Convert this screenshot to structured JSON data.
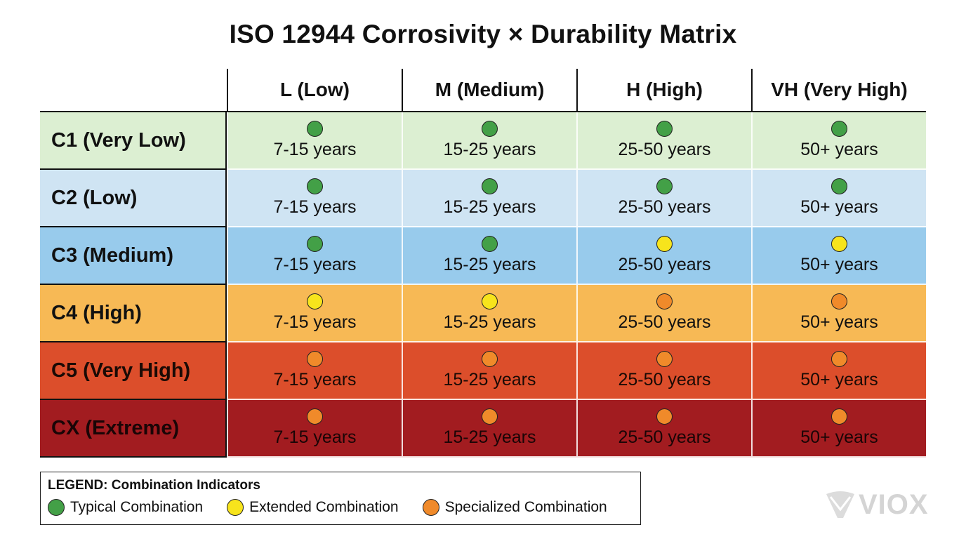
{
  "title": "ISO 12944 Corrosivity × Durability Matrix",
  "columns": [
    "L (Low)",
    "M (Medium)",
    "H (High)",
    "VH (Very High)"
  ],
  "indicator_colors": {
    "typical": "#43a047",
    "extended": "#f7e41c",
    "specialized": "#f08a2a"
  },
  "rows": [
    {
      "label": "C1 (Very Low)",
      "bg": "#dcefd2",
      "text_color": "#111111",
      "cells": [
        {
          "value": "7-15 years",
          "indicator": "typical"
        },
        {
          "value": "15-25 years",
          "indicator": "typical"
        },
        {
          "value": "25-50 years",
          "indicator": "typical"
        },
        {
          "value": "50+ years",
          "indicator": "typical"
        }
      ]
    },
    {
      "label": "C2 (Low)",
      "bg": "#cfe4f3",
      "text_color": "#111111",
      "cells": [
        {
          "value": "7-15 years",
          "indicator": "typical"
        },
        {
          "value": "15-25 years",
          "indicator": "typical"
        },
        {
          "value": "25-50 years",
          "indicator": "typical"
        },
        {
          "value": "50+ years",
          "indicator": "typical"
        }
      ]
    },
    {
      "label": "C3 (Medium)",
      "bg": "#98cbec",
      "text_color": "#111111",
      "cells": [
        {
          "value": "7-15 years",
          "indicator": "typical"
        },
        {
          "value": "15-25 years",
          "indicator": "typical"
        },
        {
          "value": "25-50 years",
          "indicator": "extended"
        },
        {
          "value": "50+ years",
          "indicator": "extended"
        }
      ]
    },
    {
      "label": "C4 (High)",
      "bg": "#f7b955",
      "text_color": "#111111",
      "cells": [
        {
          "value": "7-15 years",
          "indicator": "extended"
        },
        {
          "value": "15-25 years",
          "indicator": "extended"
        },
        {
          "value": "25-50 years",
          "indicator": "specialized"
        },
        {
          "value": "50+ years",
          "indicator": "specialized"
        }
      ]
    },
    {
      "label": "C5 (Very High)",
      "bg": "#dc4e2b",
      "text_color": "#1a0a05",
      "cells": [
        {
          "value": "7-15 years",
          "indicator": "specialized"
        },
        {
          "value": "15-25 years",
          "indicator": "specialized"
        },
        {
          "value": "25-50 years",
          "indicator": "specialized"
        },
        {
          "value": "50+ years",
          "indicator": "specialized"
        }
      ]
    },
    {
      "label": "CX (Extreme)",
      "bg": "#a21c20",
      "text_color": "#1a0506",
      "cells": [
        {
          "value": "7-15 years",
          "indicator": "specialized"
        },
        {
          "value": "15-25 years",
          "indicator": "specialized"
        },
        {
          "value": "25-50 years",
          "indicator": "specialized"
        },
        {
          "value": "50+ years",
          "indicator": "specialized"
        }
      ]
    }
  ],
  "legend": {
    "title": "LEGEND: Combination Indicators",
    "items": [
      {
        "label": "Typical Combination",
        "indicator": "typical"
      },
      {
        "label": "Extended Combination",
        "indicator": "extended"
      },
      {
        "label": "Specialized Combination",
        "indicator": "specialized"
      }
    ]
  },
  "logo": {
    "text": "VIOX"
  }
}
